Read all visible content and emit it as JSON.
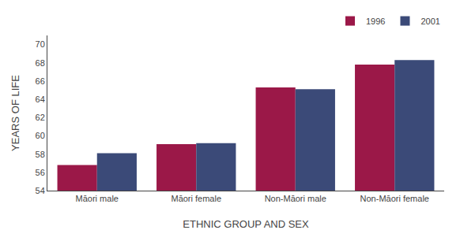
{
  "chart_data": {
    "type": "bar",
    "categories": [
      "Māori male",
      "Māori female",
      "Non-Māori male",
      "Non-Māori female"
    ],
    "series": [
      {
        "name": "1996",
        "color": "#9b1848",
        "values": [
          56.8,
          59.1,
          65.3,
          67.8
        ]
      },
      {
        "name": "2001",
        "color": "#3b4a78",
        "values": [
          58.1,
          59.2,
          65.1,
          68.3
        ]
      }
    ],
    "xlabel": "ETHNIC GROUP AND SEX",
    "ylabel": "YEARS OF LIFE",
    "ylim": [
      54,
      71
    ],
    "yticks": [
      54,
      56,
      58,
      60,
      62,
      64,
      66,
      68,
      70
    ],
    "grid": false,
    "legend": "upper right"
  }
}
